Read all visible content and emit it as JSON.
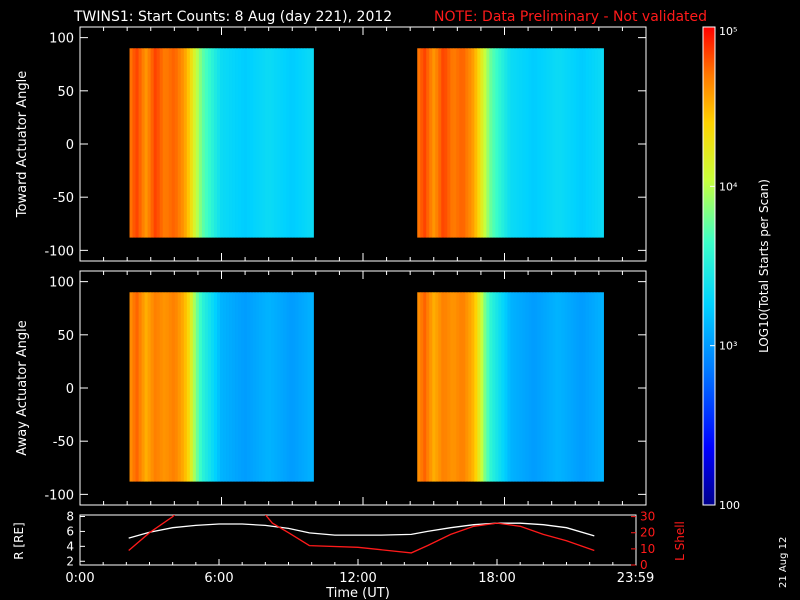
{
  "header": {
    "title": "TWINS1: Start Counts:  8 Aug (day 221), 2012",
    "note": "NOTE: Data Preliminary - Not validated"
  },
  "colors": {
    "background": "#000000",
    "note": "#ff1a1a",
    "r_line": "#ffffff",
    "l_shell_line": "#ff1a1a",
    "colorscale": [
      "#00008c",
      "#0000ff",
      "#0078ff",
      "#00d2ff",
      "#3cffc8",
      "#c8ff3c",
      "#ffd200",
      "#ff7800",
      "#ff0000"
    ]
  },
  "colorbar": {
    "label": "LOG10(Total Starts per Scan)",
    "tick_labels": [
      "100",
      "10³",
      "10⁴",
      "10⁵"
    ],
    "tick_values": [
      100,
      1000,
      10000,
      100000
    ],
    "range": [
      100,
      100000
    ],
    "scale": "log"
  },
  "timestamp": "21 Aug 12",
  "chart_data": [
    {
      "type": "heatmap",
      "ylabel": "Toward Actuator Angle",
      "ylim": [
        -110,
        110
      ],
      "y_ticks": [
        "100",
        "50",
        "0",
        "-50",
        "-100"
      ],
      "x_units": "hours UT",
      "xlim": [
        0,
        24
      ],
      "log10_counts_profile": {
        "hours": [
          2.1,
          2.4,
          2.8,
          3.2,
          3.6,
          4.0,
          4.4,
          4.6,
          4.9,
          5.2,
          5.6,
          6.0,
          7.0,
          8.0,
          9.0,
          9.9
        ],
        "values": [
          4.6,
          4.8,
          4.5,
          4.8,
          4.6,
          4.7,
          4.5,
          4.3,
          3.9,
          3.6,
          3.4,
          3.2,
          3.1,
          3.2,
          3.1,
          3.2
        ]
      },
      "scan_intervals": [
        [
          2.1,
          9.9
        ],
        [
          14.3,
          22.2
        ]
      ],
      "angle_range": [
        -88,
        90
      ]
    },
    {
      "type": "heatmap",
      "ylabel": "Away Actuator Angle",
      "ylim": [
        -110,
        110
      ],
      "y_ticks": [
        "100",
        "50",
        "0",
        "-50",
        "-100"
      ],
      "x_units": "hours UT",
      "xlim": [
        0,
        24
      ],
      "log10_counts_profile": {
        "hours": [
          2.1,
          2.4,
          2.8,
          3.2,
          3.6,
          4.0,
          4.4,
          4.6,
          4.9,
          5.2,
          5.6,
          6.0,
          7.0,
          8.0,
          9.0,
          9.9
        ],
        "values": [
          4.5,
          4.7,
          4.4,
          4.6,
          4.5,
          4.6,
          4.4,
          4.2,
          3.7,
          3.4,
          3.2,
          3.0,
          2.9,
          3.0,
          2.9,
          3.0
        ]
      },
      "scan_intervals": [
        [
          2.1,
          9.9
        ],
        [
          14.3,
          22.2
        ]
      ],
      "angle_range": [
        -88,
        90
      ]
    },
    {
      "type": "line",
      "xlabel": "Time (UT)",
      "x_tick_labels": [
        "0:00",
        "6:00",
        "12:00",
        "18:00",
        "23:59"
      ],
      "x_tick_hours": [
        0,
        6,
        12,
        18,
        23.98
      ],
      "xlim": [
        0,
        24
      ],
      "ylabel_left": "R [RE]",
      "y_left_ticks": [
        "8",
        "6",
        "4",
        "2"
      ],
      "ylim_left": [
        1.5,
        8.2
      ],
      "ylabel_right": "L Shell",
      "y_right_ticks": [
        "30",
        "20",
        "10",
        "0"
      ],
      "ylim_right": [
        0,
        31
      ],
      "series": [
        {
          "name": "R [RE]",
          "x": [
            2.1,
            3.0,
            4.0,
            5.0,
            6.0,
            7.0,
            8.0,
            9.0,
            9.9,
            11.0,
            12.0,
            13.0,
            14.3,
            15.0,
            16.0,
            17.0,
            18.0,
            19.0,
            20.0,
            21.0,
            22.2
          ],
          "y": [
            5.1,
            5.9,
            6.5,
            6.8,
            7.0,
            7.0,
            6.8,
            6.4,
            5.8,
            5.5,
            5.5,
            5.5,
            5.6,
            6.0,
            6.5,
            6.9,
            7.1,
            7.1,
            6.9,
            6.5,
            5.4
          ]
        },
        {
          "name": "L Shell",
          "x": [
            2.1,
            3.0,
            4.0,
            4.2,
            7.9,
            8.3,
            9.0,
            9.9,
            12.0,
            14.3,
            15.0,
            16.0,
            17.0,
            18.0,
            19.0,
            20.0,
            21.0,
            22.2
          ],
          "y": [
            9.0,
            20.0,
            30.0,
            33.0,
            33.0,
            26.0,
            20.0,
            12.0,
            11.0,
            7.5,
            12.0,
            19.0,
            24.0,
            26.0,
            24.0,
            19.0,
            15.0,
            9.0
          ]
        }
      ]
    }
  ]
}
